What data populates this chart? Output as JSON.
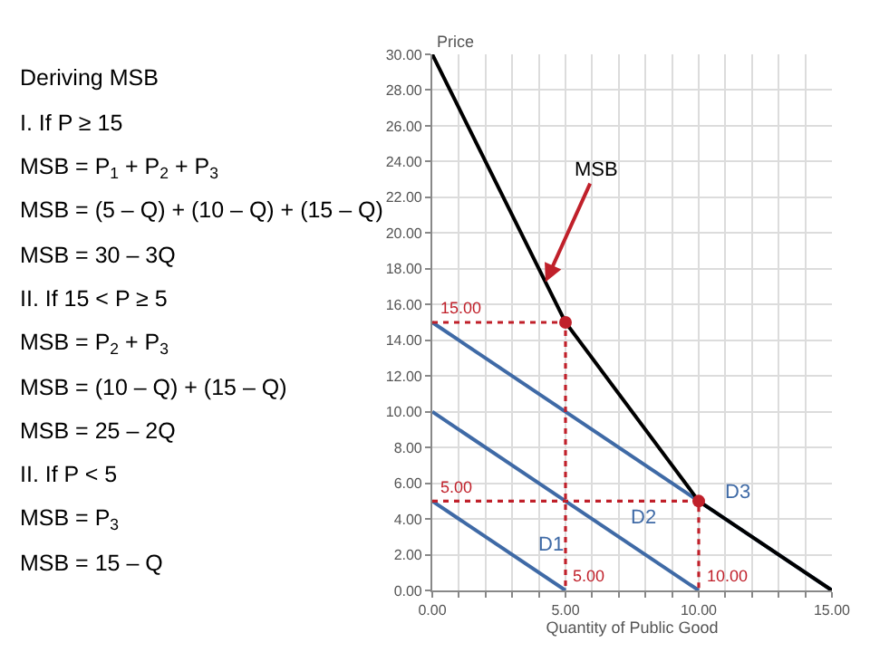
{
  "chart_data": [
    {
      "type": "other",
      "title": "Deriving MSB",
      "annotations": [
        "I. If P ≥ 15",
        "MSB = P$_{1}$ + P$_{2}$ + P$_{3}$",
        "MSB = (5 – Q) + (10 – Q) + (15 – Q)",
        "MSB = 30 – 3Q",
        "II. If 15 < P ≥ 5",
        "MSB = P$_{2}$ + P$_{3}$",
        "MSB = (10 – Q) + (15 – Q)",
        "MSB = 25 – 2Q",
        "II. If P < 5",
        "MSB = P$_{3}$",
        "MSB = 15 – Q"
      ]
    },
    {
      "type": "line",
      "xlabel": "Quantity of Public Good",
      "ylabel": "Price",
      "grid": true,
      "marker": "none",
      "line_style": "solid",
      "xlim": [
        0,
        15
      ],
      "ylim": [
        0,
        30
      ],
      "xticks": [
        {
          "value": 0,
          "label": "0.00"
        },
        {
          "value": 1,
          "label": null
        },
        {
          "value": 2,
          "label": null
        },
        {
          "value": 3,
          "label": null
        },
        {
          "value": 4,
          "label": null
        },
        {
          "value": 5,
          "label": "5.00"
        },
        {
          "value": 6,
          "label": null
        },
        {
          "value": 7,
          "label": null
        },
        {
          "value": 8,
          "label": null
        },
        {
          "value": 9,
          "label": null
        },
        {
          "value": 10,
          "label": "10.00"
        },
        {
          "value": 11,
          "label": null
        },
        {
          "value": 12,
          "label": null
        },
        {
          "value": 13,
          "label": null
        },
        {
          "value": 14,
          "label": null
        },
        {
          "value": 15,
          "label": "15.00"
        }
      ],
      "yticks": [
        {
          "value": 0,
          "label": "0.00"
        },
        {
          "value": 2,
          "label": "2.00"
        },
        {
          "value": 4,
          "label": "4.00"
        },
        {
          "value": 6,
          "label": "6.00"
        },
        {
          "value": 8,
          "label": "8.00"
        },
        {
          "value": 10,
          "label": "10.00"
        },
        {
          "value": 12,
          "label": "12.00"
        },
        {
          "value": 14,
          "label": "14.00"
        },
        {
          "value": 16,
          "label": "16.00"
        },
        {
          "value": 18,
          "label": "18.00"
        },
        {
          "value": 20,
          "label": "20.00"
        },
        {
          "value": 22,
          "label": "22.00"
        },
        {
          "value": 24,
          "label": "24.00"
        },
        {
          "value": 26,
          "label": "26.00"
        },
        {
          "value": 28,
          "label": "28.00"
        },
        {
          "value": 30,
          "label": "30.00"
        }
      ],
      "series": [
        {
          "name": "D1",
          "color": "#3f6aa6",
          "x": [
            0,
            5
          ],
          "values": [
            5,
            0
          ]
        },
        {
          "name": "D2",
          "color": "#3f6aa6",
          "x": [
            0,
            10
          ],
          "values": [
            10,
            0
          ]
        },
        {
          "name": "D3",
          "color": "#3f6aa6",
          "x": [
            0,
            15
          ],
          "values": [
            15,
            0
          ]
        },
        {
          "name": "MSB",
          "color": "#000000",
          "x": [
            0,
            5,
            10,
            15
          ],
          "values": [
            30,
            15,
            5,
            0
          ]
        },
        {
          "color": "#c0202a",
          "line_style": "dotted",
          "x": [
            0,
            5,
            5
          ],
          "values": [
            15,
            15,
            0
          ]
        },
        {
          "color": "#c0202a",
          "line_style": "dotted",
          "x": [
            0,
            10,
            10
          ],
          "values": [
            5,
            5,
            0
          ]
        },
        {
          "type": "scatter",
          "marker": "circle",
          "color": "#c0202a",
          "x": [
            5,
            10
          ],
          "values": [
            15,
            5
          ]
        }
      ],
      "annotations": [
        {
          "text": "15.00",
          "x": 0,
          "y": 15
        },
        {
          "text": "5.00",
          "x": 0,
          "y": 5
        },
        {
          "text": "5.00",
          "x": 5,
          "y": 0
        },
        {
          "text": "10.00",
          "x": 10,
          "y": 0
        }
      ]
    }
  ]
}
